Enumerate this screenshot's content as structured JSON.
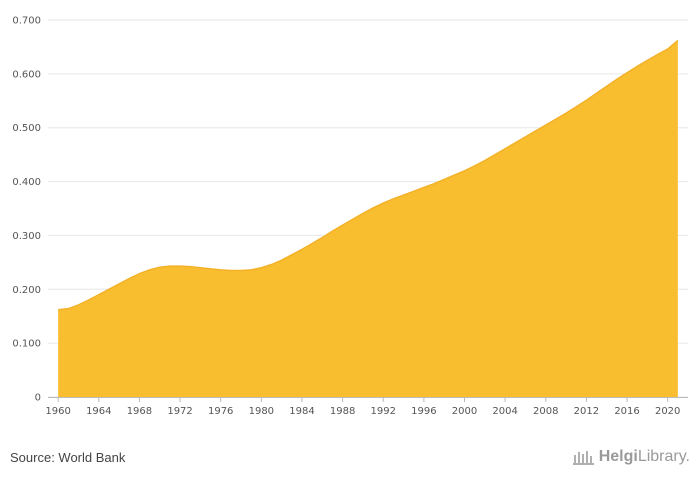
{
  "chart_data": {
    "type": "area",
    "title": "",
    "xlabel": "",
    "ylabel": "",
    "x": [
      1960,
      1961,
      1962,
      1963,
      1964,
      1965,
      1966,
      1967,
      1968,
      1969,
      1970,
      1971,
      1972,
      1973,
      1974,
      1975,
      1976,
      1977,
      1978,
      1979,
      1980,
      1981,
      1982,
      1983,
      1984,
      1985,
      1986,
      1987,
      1988,
      1989,
      1990,
      1991,
      1992,
      1993,
      1994,
      1995,
      1996,
      1997,
      1998,
      1999,
      2000,
      2001,
      2002,
      2003,
      2004,
      2005,
      2006,
      2007,
      2008,
      2009,
      2010,
      2011,
      2012,
      2013,
      2014,
      2015,
      2016,
      2017,
      2018,
      2019,
      2020,
      2021
    ],
    "values": [
      0.162,
      0.164,
      0.171,
      0.18,
      0.19,
      0.2,
      0.21,
      0.22,
      0.229,
      0.236,
      0.241,
      0.243,
      0.243,
      0.242,
      0.24,
      0.238,
      0.236,
      0.235,
      0.235,
      0.236,
      0.24,
      0.246,
      0.254,
      0.264,
      0.274,
      0.285,
      0.296,
      0.308,
      0.319,
      0.33,
      0.341,
      0.351,
      0.36,
      0.368,
      0.375,
      0.382,
      0.389,
      0.396,
      0.404,
      0.412,
      0.42,
      0.429,
      0.439,
      0.45,
      0.461,
      0.472,
      0.483,
      0.494,
      0.505,
      0.516,
      0.527,
      0.539,
      0.551,
      0.564,
      0.577,
      0.59,
      0.602,
      0.614,
      0.625,
      0.636,
      0.646,
      0.662
    ],
    "x_ticks": [
      "1960",
      "1964",
      "1968",
      "1972",
      "1976",
      "1980",
      "1984",
      "1988",
      "1992",
      "1996",
      "2000",
      "2004",
      "2008",
      "2012",
      "2016",
      "2020"
    ],
    "y_ticks": [
      "0",
      "0.100",
      "0.200",
      "0.300",
      "0.400",
      "0.500",
      "0.600",
      "0.700"
    ],
    "ylim": [
      0,
      0.7
    ],
    "xlim": [
      1959,
      2022
    ],
    "grid": true,
    "fill_color": "#F9BE30",
    "stroke_color": "#F3B128"
  },
  "footer": {
    "source": "Source: World Bank",
    "logo_text_bold": "Helgi",
    "logo_text_rest": "Library."
  }
}
